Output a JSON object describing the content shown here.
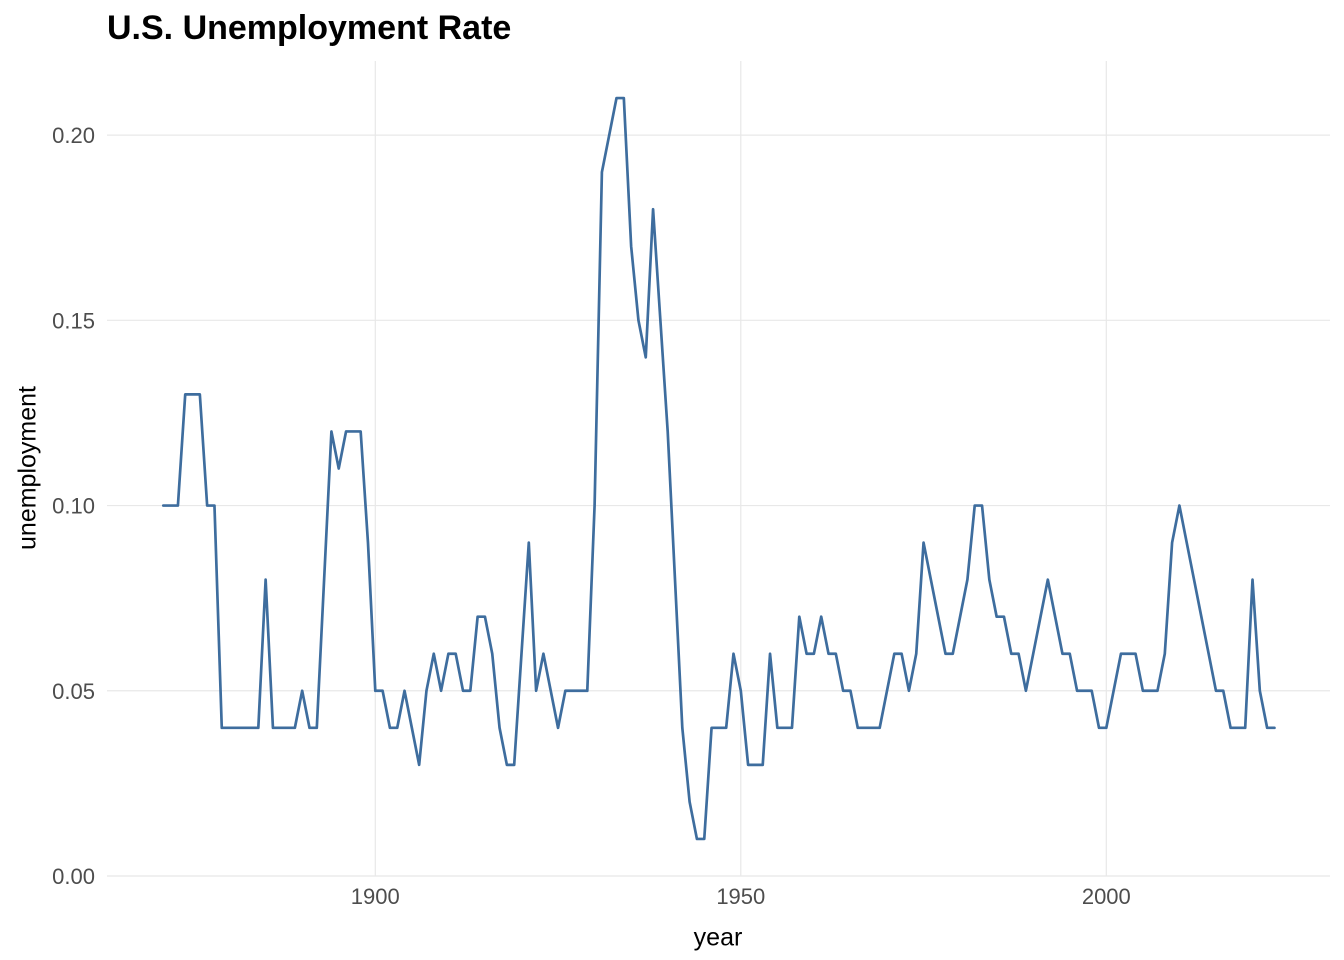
{
  "page": {
    "background": "#ffffff"
  },
  "chart_data": {
    "type": "line",
    "title": "U.S. Unemployment Rate",
    "xlabel": "year",
    "ylabel": "unemployment",
    "legend": "none",
    "grid": "major-only",
    "gridline_color": "#e8e8e8",
    "line_color": "#3e6d9e",
    "line_width": 2.7,
    "tick_label_color": "#4d4d4d",
    "title_color": "#000000",
    "xlim": [
      1863.3,
      2030.6
    ],
    "ylim": [
      0,
      0.22
    ],
    "x_ticks": [
      {
        "value": 1900,
        "label": "1900"
      },
      {
        "value": 1950,
        "label": "1950"
      },
      {
        "value": 2000,
        "label": "2000"
      }
    ],
    "y_ticks": [
      {
        "value": 0.0,
        "label": "0.00"
      },
      {
        "value": 0.05,
        "label": "0.05"
      },
      {
        "value": 0.1,
        "label": "0.10"
      },
      {
        "value": 0.15,
        "label": "0.15"
      },
      {
        "value": 0.2,
        "label": "0.20"
      }
    ],
    "x": {
      "start": 1871,
      "end": 2023,
      "step": 1
    },
    "series": [
      {
        "name": "unemployment",
        "values": [
          0.1,
          0.1,
          0.1,
          0.13,
          0.13,
          0.13,
          0.1,
          0.1,
          0.04,
          0.04,
          0.04,
          0.04,
          0.04,
          0.04,
          0.08,
          0.04,
          0.04,
          0.04,
          0.04,
          0.05,
          0.04,
          0.04,
          0.08,
          0.12,
          0.11,
          0.12,
          0.12,
          0.12,
          0.09,
          0.05,
          0.05,
          0.04,
          0.04,
          0.05,
          0.04,
          0.03,
          0.05,
          0.06,
          0.05,
          0.06,
          0.06,
          0.05,
          0.05,
          0.07,
          0.07,
          0.06,
          0.04,
          0.03,
          0.03,
          0.06,
          0.09,
          0.05,
          0.06,
          0.05,
          0.04,
          0.05,
          0.05,
          0.05,
          0.05,
          0.1,
          0.19,
          0.2,
          0.21,
          0.21,
          0.17,
          0.15,
          0.14,
          0.18,
          0.15,
          0.12,
          0.08,
          0.04,
          0.02,
          0.01,
          0.01,
          0.04,
          0.04,
          0.04,
          0.06,
          0.05,
          0.03,
          0.03,
          0.03,
          0.06,
          0.04,
          0.04,
          0.04,
          0.07,
          0.06,
          0.06,
          0.07,
          0.06,
          0.06,
          0.05,
          0.05,
          0.04,
          0.04,
          0.04,
          0.04,
          0.05,
          0.06,
          0.06,
          0.05,
          0.06,
          0.09,
          0.08,
          0.07,
          0.06,
          0.06,
          0.07,
          0.08,
          0.1,
          0.1,
          0.08,
          0.07,
          0.07,
          0.06,
          0.06,
          0.05,
          0.06,
          0.07,
          0.08,
          0.07,
          0.06,
          0.06,
          0.05,
          0.05,
          0.05,
          0.04,
          0.04,
          0.05,
          0.06,
          0.06,
          0.06,
          0.05,
          0.05,
          0.05,
          0.06,
          0.09,
          0.1,
          0.09,
          0.08,
          0.07,
          0.06,
          0.05,
          0.05,
          0.04,
          0.04,
          0.04,
          0.08,
          0.05,
          0.04,
          0.04
        ]
      }
    ]
  }
}
